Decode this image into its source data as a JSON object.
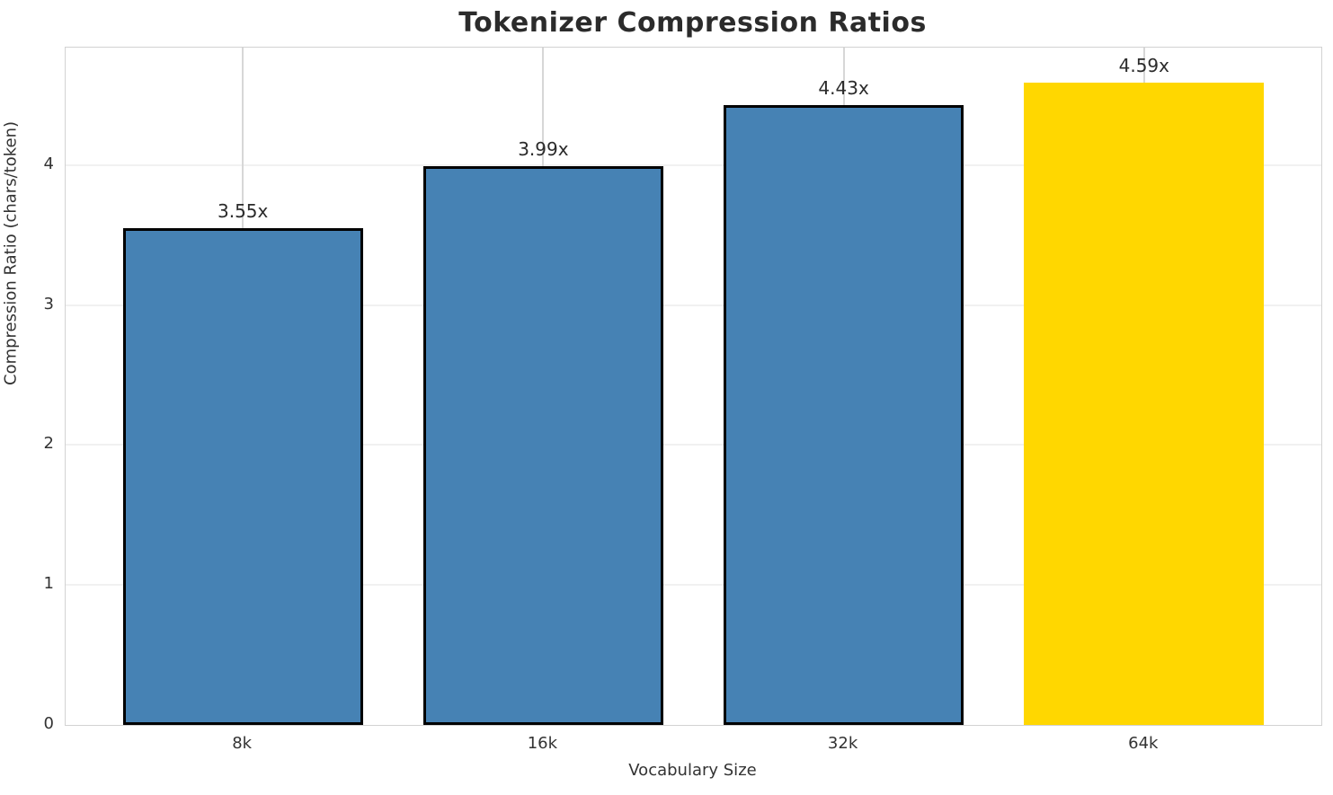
{
  "chart_data": {
    "type": "bar",
    "title": "Tokenizer Compression Ratios",
    "xlabel": "Vocabulary Size",
    "ylabel": "Compression Ratio (chars/token)",
    "categories": [
      "8k",
      "16k",
      "32k",
      "64k"
    ],
    "values": [
      3.55,
      3.99,
      4.43,
      4.59
    ],
    "bar_labels": [
      "3.55x",
      "3.99x",
      "4.43x",
      "4.59x"
    ],
    "bar_colors": [
      "#4682b4",
      "#4682b4",
      "#4682b4",
      "#ffd700"
    ],
    "bar_edge_colors": [
      "#000000",
      "#000000",
      "#000000",
      "none"
    ],
    "highlight_index": 3,
    "yticks": [
      0,
      1,
      2,
      3,
      4
    ],
    "ylim": [
      0,
      4.84
    ],
    "xlim": [
      -0.59,
      3.59
    ],
    "bar_width_frac": 0.8,
    "grid": "on",
    "grid_x_color": "#d7d7d7",
    "grid_y_color": "#f1f1f1",
    "spine_color": "#d2d2d2",
    "title_color": "#2b2b2b",
    "text_color": "#333333",
    "legend": "none"
  }
}
